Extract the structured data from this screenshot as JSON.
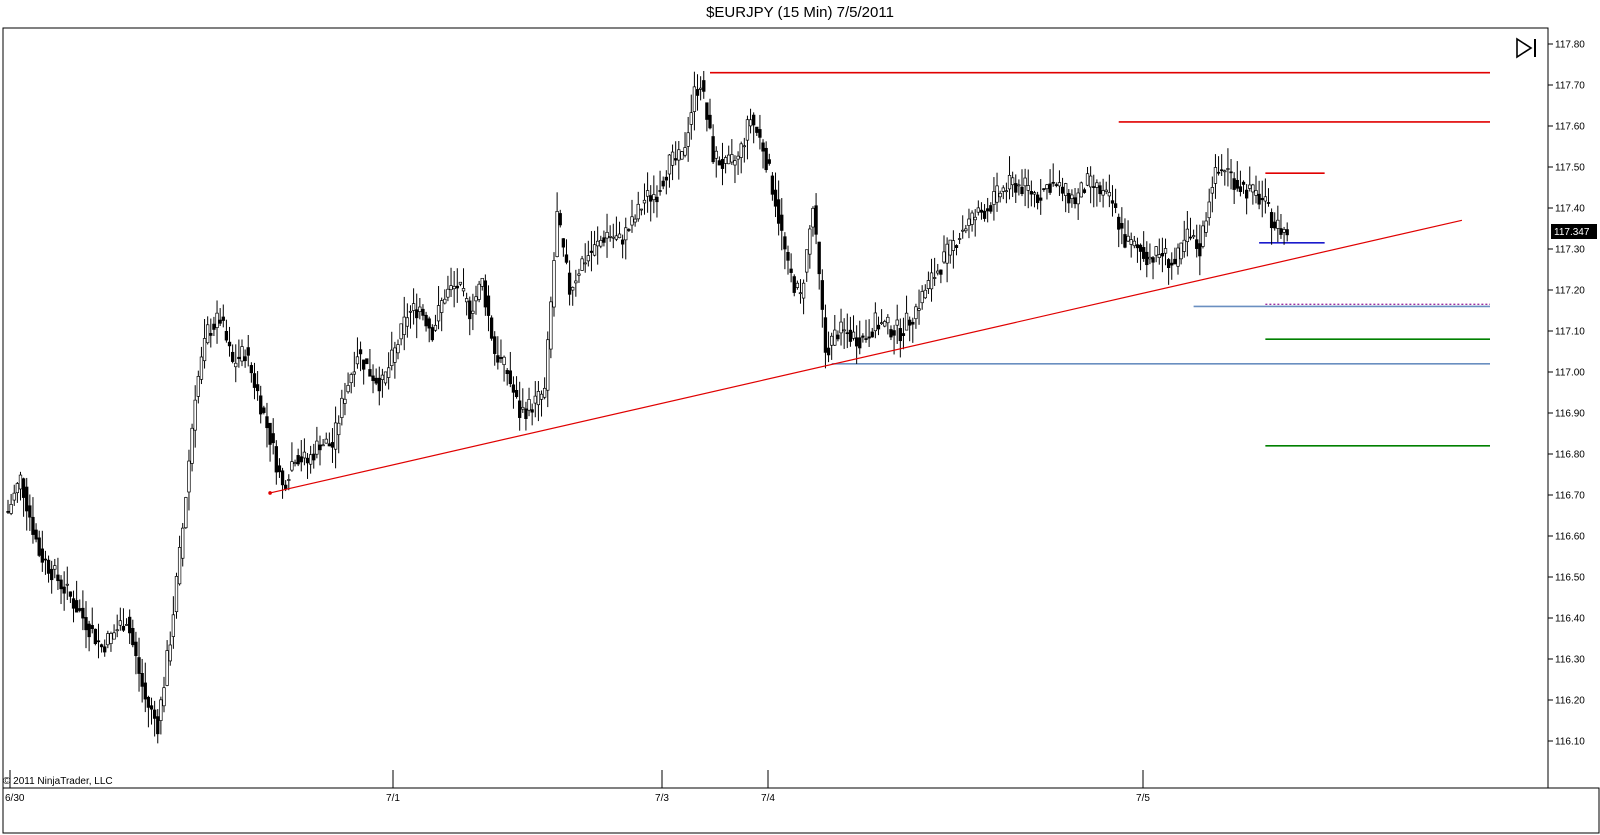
{
  "chart_title": "$EURJPY (15 Min)  7/5/2011",
  "copyright": "© 2011 NinjaTrader, LLC",
  "nav_icon": "skip-to-end-icon",
  "colors": {
    "candle": "#000000",
    "resistance": "#e00000",
    "trendline": "#e00000",
    "support_blue": "#6a8fc0",
    "current_low": "#1a1acc",
    "target_green": "#008000",
    "dotted": "#9a2fa0",
    "price_label_bg": "#000000"
  },
  "chart_data": {
    "type": "candlestick",
    "title": "$EURJPY (15 Min)  7/5/2011",
    "ylim": [
      116.03,
      117.84
    ],
    "y_ticks": [
      "117.80",
      "117.70",
      "117.60",
      "117.50",
      "117.40",
      "117.30",
      "117.20",
      "117.10",
      "117.00",
      "116.90",
      "116.80",
      "116.70",
      "116.60",
      "116.50",
      "116.40",
      "116.30",
      "116.20",
      "116.10"
    ],
    "x_ticks": [
      "6/30",
      "7/1",
      "7/3",
      "7/4",
      "7/5"
    ],
    "last_price": "117.347",
    "anchors": [
      [
        0,
        116.66
      ],
      [
        4,
        116.74
      ],
      [
        10,
        116.56
      ],
      [
        20,
        116.45
      ],
      [
        30,
        116.33
      ],
      [
        38,
        116.4
      ],
      [
        44,
        116.2
      ],
      [
        48,
        116.14
      ],
      [
        52,
        116.35
      ],
      [
        56,
        116.62
      ],
      [
        60,
        116.95
      ],
      [
        64,
        117.1
      ],
      [
        68,
        117.13
      ],
      [
        72,
        117.02
      ],
      [
        76,
        117.05
      ],
      [
        80,
        116.95
      ],
      [
        84,
        116.84
      ],
      [
        88,
        116.72
      ],
      [
        92,
        116.8
      ],
      [
        96,
        116.78
      ],
      [
        100,
        116.83
      ],
      [
        104,
        116.82
      ],
      [
        108,
        116.95
      ],
      [
        112,
        117.05
      ],
      [
        116,
        117.0
      ],
      [
        120,
        116.97
      ],
      [
        124,
        117.05
      ],
      [
        128,
        117.14
      ],
      [
        132,
        117.16
      ],
      [
        136,
        117.1
      ],
      [
        140,
        117.19
      ],
      [
        144,
        117.21
      ],
      [
        148,
        117.15
      ],
      [
        152,
        117.22
      ],
      [
        156,
        117.05
      ],
      [
        160,
        117.0
      ],
      [
        164,
        116.9
      ],
      [
        168,
        116.92
      ],
      [
        172,
        116.95
      ],
      [
        176,
        117.38
      ],
      [
        180,
        117.2
      ],
      [
        184,
        117.27
      ],
      [
        188,
        117.3
      ],
      [
        192,
        117.34
      ],
      [
        196,
        117.32
      ],
      [
        200,
        117.36
      ],
      [
        204,
        117.42
      ],
      [
        208,
        117.44
      ],
      [
        212,
        117.51
      ],
      [
        216,
        117.52
      ],
      [
        220,
        117.68
      ],
      [
        222,
        117.71
      ],
      [
        226,
        117.53
      ],
      [
        230,
        117.5
      ],
      [
        234,
        117.52
      ],
      [
        238,
        117.62
      ],
      [
        242,
        117.55
      ],
      [
        246,
        117.42
      ],
      [
        250,
        117.25
      ],
      [
        254,
        117.18
      ],
      [
        258,
        117.4
      ],
      [
        262,
        117.05
      ],
      [
        266,
        117.1
      ],
      [
        270,
        117.09
      ],
      [
        274,
        117.08
      ],
      [
        278,
        117.12
      ],
      [
        282,
        117.11
      ],
      [
        286,
        117.1
      ],
      [
        290,
        117.14
      ],
      [
        294,
        117.2
      ],
      [
        298,
        117.25
      ],
      [
        302,
        117.3
      ],
      [
        306,
        117.35
      ],
      [
        310,
        117.38
      ],
      [
        314,
        117.4
      ],
      [
        318,
        117.44
      ],
      [
        322,
        117.46
      ],
      [
        326,
        117.45
      ],
      [
        330,
        117.43
      ],
      [
        334,
        117.46
      ],
      [
        338,
        117.44
      ],
      [
        342,
        117.42
      ],
      [
        346,
        117.46
      ],
      [
        350,
        117.44
      ],
      [
        354,
        117.41
      ],
      [
        358,
        117.32
      ],
      [
        362,
        117.3
      ],
      [
        366,
        117.28
      ],
      [
        370,
        117.29
      ],
      [
        374,
        117.26
      ],
      [
        378,
        117.33
      ],
      [
        382,
        117.3
      ],
      [
        386,
        117.47
      ],
      [
        390,
        117.5
      ],
      [
        394,
        117.46
      ],
      [
        398,
        117.44
      ],
      [
        402,
        117.42
      ],
      [
        406,
        117.36
      ],
      [
        410,
        117.34
      ]
    ],
    "levels": [
      {
        "price": 117.73,
        "x_from": 225,
        "x_to": 475,
        "style": "resistance"
      },
      {
        "price": 117.61,
        "x_from": 356,
        "x_to": 475,
        "style": "resistance"
      },
      {
        "price": 117.485,
        "x_from": 403,
        "x_to": 422,
        "style": "resistance"
      },
      {
        "price": 117.315,
        "x_from": 401,
        "x_to": 422,
        "style": "current_low"
      },
      {
        "price": 117.16,
        "x_from": 380,
        "x_to": 475,
        "style": "support_blue"
      },
      {
        "price": 117.165,
        "x_from": 403,
        "x_to": 475,
        "style": "dotted"
      },
      {
        "price": 117.08,
        "x_from": 403,
        "x_to": 475,
        "style": "target_green"
      },
      {
        "price": 117.02,
        "x_from": 264,
        "x_to": 475,
        "style": "support_blue"
      },
      {
        "price": 116.82,
        "x_from": 403,
        "x_to": 475,
        "style": "target_green"
      }
    ],
    "trendline": {
      "from": [
        84,
        116.705
      ],
      "to": [
        466,
        117.37
      ]
    }
  }
}
